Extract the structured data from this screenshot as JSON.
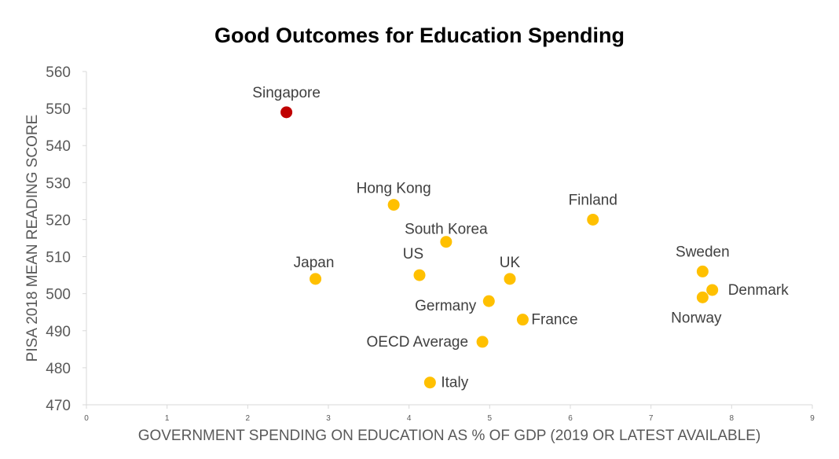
{
  "chart_data": {
    "type": "scatter",
    "title": "Good Outcomes for Education Spending",
    "xlabel": "GOVERNMENT SPENDING ON EDUCATION AS % OF GDP (2019 OR LATEST AVAILABLE)",
    "ylabel": "PISA 2018 MEAN READING SCORE",
    "xlim": [
      0,
      9
    ],
    "ylim": [
      470,
      560
    ],
    "xticks": [
      0,
      1,
      2,
      3,
      4,
      5,
      6,
      7,
      8,
      9
    ],
    "yticks": [
      470,
      480,
      490,
      500,
      510,
      520,
      530,
      540,
      550,
      560
    ],
    "grid": false,
    "colors": {
      "highlight": "#C00000",
      "default": "#FFC000"
    },
    "points": [
      {
        "label": "Singapore",
        "x": 2.48,
        "y": 549,
        "highlight": true
      },
      {
        "label": "Hong Kong",
        "x": 3.81,
        "y": 524
      },
      {
        "label": "Finland",
        "x": 6.28,
        "y": 520
      },
      {
        "label": "South Korea",
        "x": 4.46,
        "y": 514
      },
      {
        "label": "Japan",
        "x": 2.84,
        "y": 504
      },
      {
        "label": "US",
        "x": 4.13,
        "y": 505
      },
      {
        "label": "UK",
        "x": 5.25,
        "y": 504
      },
      {
        "label": "Sweden",
        "x": 7.64,
        "y": 506
      },
      {
        "label": "Denmark",
        "x": 7.76,
        "y": 501
      },
      {
        "label": "Norway",
        "x": 7.64,
        "y": 499
      },
      {
        "label": "Germany",
        "x": 4.99,
        "y": 498
      },
      {
        "label": "France",
        "x": 5.41,
        "y": 493
      },
      {
        "label": "OECD Average",
        "x": 4.91,
        "y": 487
      },
      {
        "label": "Italy",
        "x": 4.26,
        "y": 476
      }
    ]
  }
}
